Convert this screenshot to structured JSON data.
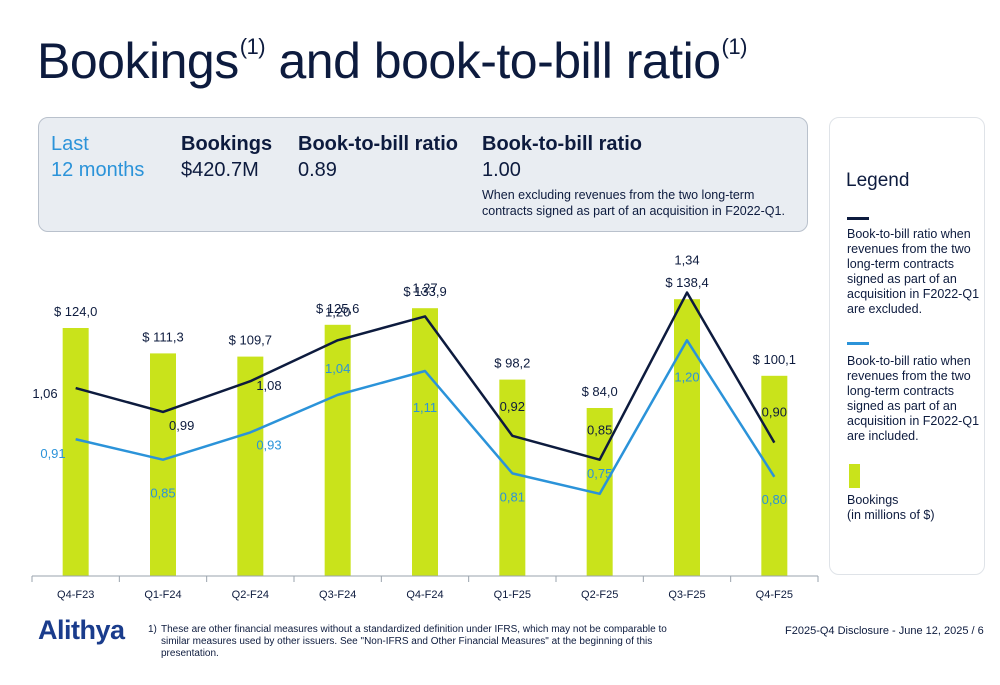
{
  "title": {
    "main": "Bookings",
    "mid": " and book-to-bill ratio",
    "sup1": "(1)",
    "sup2": "(1)"
  },
  "summary": {
    "period_line1": "Last",
    "period_line2": "12 months",
    "bookings_label": "Bookings",
    "bookings_value": "$420.7M",
    "btb_label": "Book-to-bill ratio",
    "btb_value": "0.89",
    "btb2_label": "Book-to-bill ratio",
    "btb2_value": "1.00",
    "btb2_note": "When excluding revenues from the two long-term contracts signed as part of an acquisition in F2022-Q1."
  },
  "legend": {
    "title": "Legend",
    "item_excluded": "Book-to-bill ratio when revenues from the two long-term contracts signed as part of an acquisition in F2022-Q1 are excluded.",
    "item_included": "Book-to-bill ratio when revenues from the two long-term contracts signed as part of an acquisition in F2022-Q1 are included.",
    "item_bookings": "Bookings\n(in millions of $)"
  },
  "colors": {
    "bar": "#c9e31b",
    "line_excluded": "#0d1b3e",
    "line_included": "#2b93d9",
    "title": "#0d1b3e",
    "logo": "#1a3c8c"
  },
  "chart_data": {
    "type": "bar",
    "categories": [
      "Q4-F23",
      "Q1-F24",
      "Q2-F24",
      "Q3-F24",
      "Q4-F24",
      "Q1-F25",
      "Q2-F25",
      "Q3-F25",
      "Q4-F25"
    ],
    "series": [
      {
        "name": "Bookings",
        "type": "bar",
        "values": [
          124.0,
          111.3,
          109.7,
          125.6,
          133.9,
          98.2,
          84.0,
          138.4,
          100.1
        ],
        "labels": [
          "$ 124,0",
          "$ 111,3",
          "$ 109,7",
          "$ 125,6",
          "$ 133,9",
          "$ 98,2",
          "$ 84,0",
          "$ 138,4",
          "$ 100,1"
        ]
      },
      {
        "name": "Book-to-bill ratio (excluded)",
        "type": "line",
        "values": [
          1.06,
          0.99,
          1.08,
          1.2,
          1.27,
          0.92,
          0.85,
          1.34,
          0.9
        ],
        "labels": [
          "1,06",
          "0,99",
          "1,08",
          "1,20",
          "1,27",
          "0,92",
          "0,85",
          "1,34",
          "0,90"
        ]
      },
      {
        "name": "Book-to-bill ratio (included)",
        "type": "line",
        "values": [
          0.91,
          0.85,
          0.93,
          1.04,
          1.11,
          0.81,
          0.75,
          1.2,
          0.8
        ],
        "labels": [
          "0,91",
          "0,85",
          "0,93",
          "1,04",
          "1,11",
          "0,81",
          "0,75",
          "1,20",
          "0,80"
        ]
      }
    ],
    "bar_ylim": [
      0,
      160
    ],
    "ratio_ylim": [
      0.6,
      1.45
    ],
    "grid": false
  },
  "footer": {
    "logo": "Alithya",
    "footnote_num": "1)",
    "footnote_text": "These are other financial measures without a standardized definition under IFRS, which may not be comparable to similar measures used by other issuers. See \"Non-IFRS and Other Financial Measures\" at the beginning of this presentation.",
    "right": "F2025-Q4 Disclosure - June 12, 2025  /  6"
  }
}
